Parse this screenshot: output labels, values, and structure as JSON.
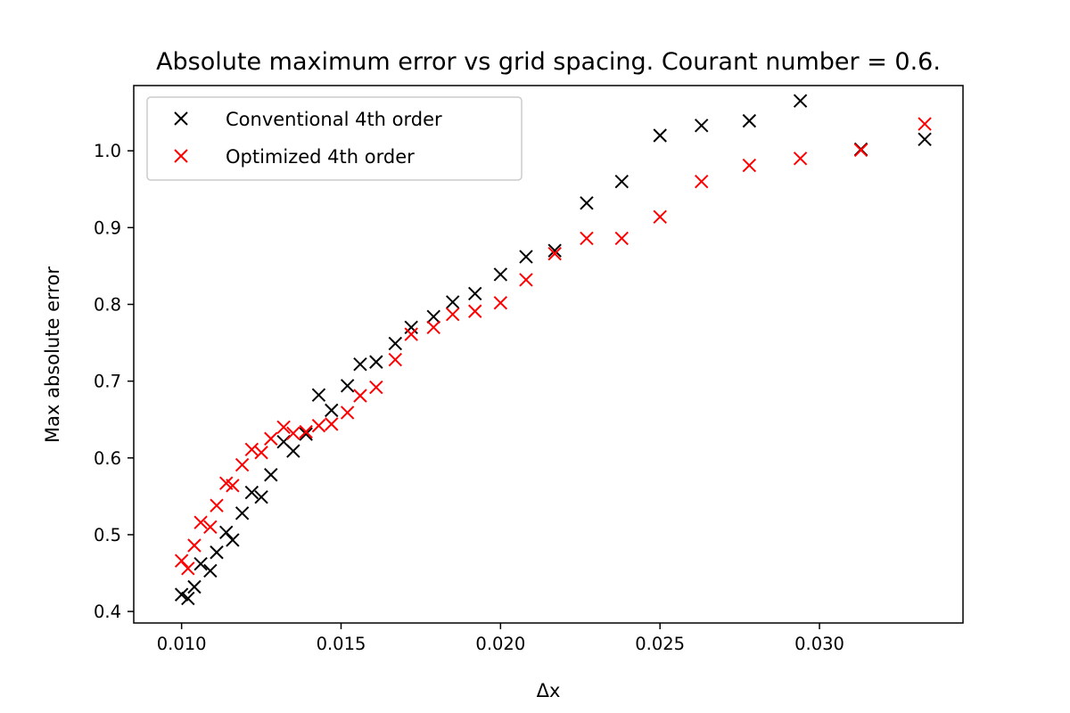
{
  "chart_data": {
    "type": "scatter",
    "title": "Absolute maximum error vs grid spacing. Courant number = 0.6.",
    "xlabel": "Δx",
    "ylabel": "Max absolute error",
    "xlim": [
      0.0085,
      0.0345
    ],
    "ylim": [
      0.385,
      1.085
    ],
    "xticks": [
      "0.010",
      "0.015",
      "0.020",
      "0.025",
      "0.030"
    ],
    "xtick_values": [
      0.01,
      0.015,
      0.02,
      0.025,
      0.03
    ],
    "yticks": [
      "0.4",
      "0.5",
      "0.6",
      "0.7",
      "0.8",
      "0.9",
      "1.0"
    ],
    "ytick_values": [
      0.4,
      0.5,
      0.6,
      0.7,
      0.8,
      0.9,
      1.0
    ],
    "grid": false,
    "legend_position": "top-left",
    "marker": "x",
    "series": [
      {
        "name": "Conventional 4th order",
        "color": "#000000",
        "x": [
          0.01,
          0.0102,
          0.0104,
          0.0106,
          0.0109,
          0.0111,
          0.0114,
          0.0116,
          0.0119,
          0.0122,
          0.0125,
          0.0128,
          0.0132,
          0.0135,
          0.0139,
          0.0143,
          0.0147,
          0.0152,
          0.0156,
          0.0161,
          0.0167,
          0.0172,
          0.0179,
          0.0185,
          0.0192,
          0.02,
          0.0208,
          0.0217,
          0.0227,
          0.0238,
          0.025,
          0.0263,
          0.0278,
          0.0294,
          0.0313,
          0.0333
        ],
        "y": [
          0.422,
          0.417,
          0.432,
          0.462,
          0.453,
          0.477,
          0.503,
          0.493,
          0.528,
          0.555,
          0.549,
          0.578,
          0.621,
          0.609,
          0.631,
          0.682,
          0.662,
          0.694,
          0.722,
          0.725,
          0.749,
          0.77,
          0.784,
          0.803,
          0.814,
          0.839,
          0.862,
          0.87,
          0.932,
          0.96,
          1.02,
          1.033,
          1.039,
          1.065,
          1.002,
          1.015
        ]
      },
      {
        "name": "Optimized 4th order",
        "color": "#ff0000",
        "x": [
          0.01,
          0.0102,
          0.0104,
          0.0106,
          0.0109,
          0.0111,
          0.0114,
          0.0116,
          0.0119,
          0.0122,
          0.0125,
          0.0128,
          0.0132,
          0.0135,
          0.0139,
          0.0143,
          0.0147,
          0.0152,
          0.0156,
          0.0161,
          0.0167,
          0.0172,
          0.0179,
          0.0185,
          0.0192,
          0.02,
          0.0208,
          0.0217,
          0.0227,
          0.0238,
          0.025,
          0.0263,
          0.0278,
          0.0294,
          0.0313,
          0.0333
        ],
        "y": [
          0.466,
          0.456,
          0.486,
          0.516,
          0.51,
          0.538,
          0.567,
          0.564,
          0.591,
          0.611,
          0.607,
          0.625,
          0.64,
          0.632,
          0.634,
          0.642,
          0.644,
          0.659,
          0.681,
          0.692,
          0.728,
          0.761,
          0.77,
          0.787,
          0.791,
          0.802,
          0.832,
          0.866,
          0.886,
          0.886,
          0.914,
          0.96,
          0.981,
          0.99,
          1.001,
          1.035
        ]
      }
    ]
  }
}
